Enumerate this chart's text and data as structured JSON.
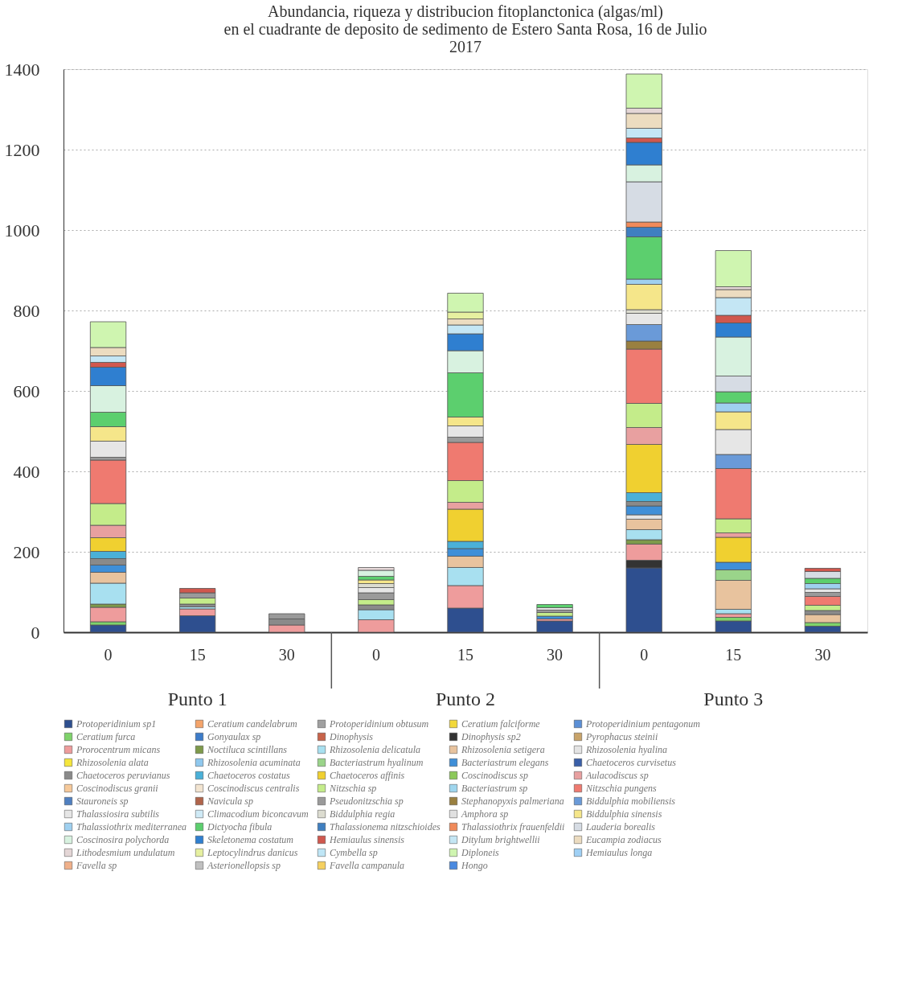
{
  "chart_data": {
    "type": "bar",
    "stacked": true,
    "title": [
      "Abundancia, riqueza y distribucion fitoplanctonica (algas/ml)",
      "en el cuadrante de deposito de sedimento de Estero Santa Rosa, 16 de Julio",
      "2017"
    ],
    "categories": [
      "0",
      "15",
      "30",
      "0",
      "15",
      "30",
      "0",
      "15",
      "30"
    ],
    "annotations": [
      "Punto 1",
      "Punto 2",
      "Punto 3"
    ],
    "ylim": [
      0,
      1400
    ],
    "yticks": [
      0,
      200,
      400,
      600,
      800,
      1000,
      1200,
      1400
    ],
    "grid": "y",
    "legend": "bottom",
    "series": [
      {
        "name": "Protoperidinium sp1",
        "color": "#2e4f8f",
        "values": [
          18,
          41,
          null,
          null,
          60,
          28,
          160,
          28,
          15
        ]
      },
      {
        "name": "Ceratium candelabrum",
        "color": "#f4a46a",
        "values": [
          null,
          null,
          null,
          null,
          null,
          null,
          null,
          null,
          null
        ]
      },
      {
        "name": "Protoperidinium obtusum",
        "color": "#a0a0a0",
        "values": [
          null,
          null,
          null,
          null,
          null,
          null,
          null,
          null,
          null
        ]
      },
      {
        "name": "Ceratium falciforme",
        "color": "#f2d83a",
        "values": [
          null,
          null,
          null,
          null,
          null,
          null,
          null,
          null,
          null
        ]
      },
      {
        "name": "Protoperidinium pentagonum",
        "color": "#5b8fd6",
        "values": [
          null,
          null,
          null,
          null,
          null,
          null,
          null,
          null,
          null
        ]
      },
      {
        "name": "Ceratium furca",
        "color": "#7fd36b",
        "values": [
          8,
          null,
          null,
          null,
          null,
          null,
          null,
          9,
          9
        ]
      },
      {
        "name": "Gonyaulax sp",
        "color": "#3d7cc9",
        "values": [
          null,
          null,
          null,
          null,
          null,
          null,
          null,
          null,
          null
        ]
      },
      {
        "name": "Dinophysis",
        "color": "#c8634a",
        "values": [
          null,
          null,
          null,
          null,
          null,
          null,
          null,
          null,
          null
        ]
      },
      {
        "name": "Dinophysis sp2",
        "color": "#333333",
        "values": [
          null,
          null,
          null,
          null,
          null,
          null,
          19,
          null,
          null
        ]
      },
      {
        "name": "Pyrophacus steinii",
        "color": "#c9a46a",
        "values": [
          null,
          null,
          null,
          null,
          null,
          null,
          null,
          null,
          null
        ]
      },
      {
        "name": "Prorocentrum micans",
        "color": "#ee9c9c",
        "values": [
          36,
          17,
          18,
          31,
          56,
          5,
          40,
          9,
          null
        ]
      },
      {
        "name": "Noctiluca scintillans",
        "color": "#7e9a4a",
        "values": [
          8,
          null,
          null,
          null,
          null,
          null,
          11,
          null,
          null
        ]
      },
      {
        "name": "Rhizosolenia delicatula",
        "color": "#a8e0f0",
        "values": [
          52,
          5,
          null,
          25,
          45,
          null,
          25,
          11,
          null
        ]
      },
      {
        "name": "Rhizosolenia setigera",
        "color": "#e8c39e",
        "values": [
          27,
          null,
          null,
          null,
          28,
          null,
          26,
          72,
          20
        ]
      },
      {
        "name": "Rhizosolenia hyalina",
        "color": "#e4e4e4",
        "values": [
          null,
          null,
          null,
          null,
          null,
          null,
          11,
          null,
          null
        ]
      },
      {
        "name": "Rhizosolenia alata",
        "color": "#f5e63c",
        "values": [
          null,
          null,
          null,
          null,
          null,
          null,
          null,
          null,
          null
        ]
      },
      {
        "name": "Rhizosolenia acuminata",
        "color": "#8fc8ee",
        "values": [
          null,
          null,
          null,
          null,
          null,
          null,
          null,
          null,
          null
        ]
      },
      {
        "name": "Bacteriastrum hyalinum",
        "color": "#9ad48a",
        "values": [
          null,
          null,
          null,
          null,
          null,
          null,
          null,
          26,
          null
        ]
      },
      {
        "name": "Bacteriastrum elegans",
        "color": "#3f8fd8",
        "values": [
          18,
          null,
          null,
          null,
          19,
          7,
          22,
          19,
          null
        ]
      },
      {
        "name": "Chaetoceros curvisetus",
        "color": "#3a5fa8",
        "values": [
          null,
          null,
          null,
          null,
          null,
          null,
          null,
          null,
          null
        ]
      },
      {
        "name": "Chaetoceros peruvianus",
        "color": "#8a8a8a",
        "values": [
          16,
          7,
          15,
          12,
          null,
          null,
          11,
          null,
          10
        ]
      },
      {
        "name": "Chaetoceros costatus",
        "color": "#4ab0d8",
        "values": [
          18,
          null,
          null,
          null,
          18,
          null,
          22,
          null,
          null
        ]
      },
      {
        "name": "Chaetoceros affinis",
        "color": "#f0d030",
        "values": [
          34,
          null,
          null,
          null,
          80,
          null,
          120,
          62,
          null
        ]
      },
      {
        "name": "Coscinodiscus sp",
        "color": "#8cc85a",
        "values": [
          null,
          null,
          null,
          null,
          null,
          null,
          null,
          null,
          null
        ]
      },
      {
        "name": "Aulacodiscus sp",
        "color": "#e8a0a0",
        "values": [
          31,
          null,
          null,
          null,
          17,
          null,
          42,
          11,
          null
        ]
      },
      {
        "name": "Coscinodiscus granii",
        "color": "#f6c99a",
        "values": [
          null,
          null,
          null,
          null,
          null,
          null,
          null,
          null,
          null
        ]
      },
      {
        "name": "Coscinodiscus centralis",
        "color": "#f2e4d0",
        "values": [
          null,
          null,
          null,
          null,
          null,
          null,
          null,
          null,
          null
        ]
      },
      {
        "name": "Nitzschia sp",
        "color": "#c4ec8a",
        "values": [
          54,
          15,
          null,
          13,
          54,
          9,
          60,
          35,
          13
        ]
      },
      {
        "name": "Bacteriastrum sp",
        "color": "#9fd6ee",
        "values": [
          null,
          null,
          null,
          null,
          null,
          null,
          null,
          null,
          null
        ]
      },
      {
        "name": "Nitzschia pungens",
        "color": "#ef7a70",
        "values": [
          108,
          null,
          null,
          null,
          95,
          null,
          135,
          125,
          22
        ]
      },
      {
        "name": "Stauroneis sp",
        "color": "#4f7fc0",
        "values": [
          null,
          null,
          null,
          null,
          null,
          null,
          null,
          null,
          null
        ]
      },
      {
        "name": "Navicula sp",
        "color": "#b0644a",
        "values": [
          null,
          null,
          null,
          null,
          null,
          null,
          null,
          null,
          null
        ]
      },
      {
        "name": "Pseudonitzschia sp",
        "color": "#9a9a9a",
        "values": [
          7,
          13,
          13,
          17,
          13,
          6,
          null,
          null,
          10
        ]
      },
      {
        "name": "Stephanopyxis palmeriana",
        "color": "#9a8040",
        "values": [
          null,
          null,
          null,
          null,
          null,
          null,
          20,
          null,
          null
        ]
      },
      {
        "name": "Biddulphia mobiliensis",
        "color": "#6a9ad8",
        "values": [
          null,
          null,
          null,
          null,
          null,
          null,
          41,
          35,
          null
        ]
      },
      {
        "name": "Thalassiosira subtilis",
        "color": "#e6e6e6",
        "values": [
          40,
          null,
          null,
          13,
          28,
          6,
          28,
          62,
          9
        ]
      },
      {
        "name": "Climacodium biconcavum",
        "color": "#cfeaf6",
        "values": [
          null,
          null,
          null,
          null,
          null,
          null,
          null,
          null,
          null
        ]
      },
      {
        "name": "Biddulphia regia",
        "color": "#dcdcd0",
        "values": [
          null,
          null,
          null,
          10,
          null,
          null,
          9,
          null,
          null
        ]
      },
      {
        "name": "Amphora sp",
        "color": "#e0e0e0",
        "values": [
          null,
          null,
          null,
          null,
          null,
          null,
          null,
          null,
          null
        ]
      },
      {
        "name": "Biddulphia sinensis",
        "color": "#f5e68a",
        "values": [
          36,
          null,
          null,
          9,
          22,
          null,
          63,
          44,
          null
        ]
      },
      {
        "name": "Thalassiothrix mediterranea",
        "color": "#9fd0f0",
        "values": [
          null,
          null,
          null,
          null,
          null,
          null,
          13,
          22,
          13
        ]
      },
      {
        "name": "Dictyocha fibula",
        "color": "#5ccf6e",
        "values": [
          36,
          null,
          null,
          9,
          110,
          8,
          105,
          28,
          13
        ]
      },
      {
        "name": "Thalassionema nitzschioides",
        "color": "#3f7fc0",
        "values": [
          null,
          null,
          null,
          null,
          null,
          null,
          24,
          null,
          null
        ]
      },
      {
        "name": "Thalassiothrix frauenfeldii",
        "color": "#f08a5a",
        "values": [
          null,
          null,
          null,
          null,
          null,
          null,
          13,
          null,
          null
        ]
      },
      {
        "name": "Lauderia borealis",
        "color": "#d6dce4",
        "values": [
          null,
          null,
          null,
          null,
          null,
          null,
          100,
          39,
          17
        ]
      },
      {
        "name": "Coscinosira polychorda",
        "color": "#d8f2e0",
        "values": [
          66,
          null,
          null,
          15,
          55,
          null,
          42,
          97,
          null
        ]
      },
      {
        "name": "Skeletonema costatum",
        "color": "#2f7fd0",
        "values": [
          46,
          null,
          null,
          null,
          42,
          null,
          56,
          35,
          null
        ]
      },
      {
        "name": "Hemiaulus sinensis",
        "color": "#d0584e",
        "values": [
          12,
          11,
          null,
          null,
          null,
          null,
          11,
          19,
          8
        ]
      },
      {
        "name": "Ditylum brightwellii",
        "color": "#c4e6f4",
        "values": [
          16,
          null,
          null,
          null,
          22,
          null,
          24,
          44,
          null
        ]
      },
      {
        "name": "Eucampia zodiacus",
        "color": "#ecdcc0",
        "values": [
          21,
          null,
          null,
          null,
          15,
          null,
          37,
          20,
          null
        ]
      },
      {
        "name": "Lithodesmium undulatum",
        "color": "#e4d6d6",
        "values": [
          null,
          null,
          null,
          7,
          null,
          null,
          13,
          7,
          null
        ]
      },
      {
        "name": "Leptocylindrus danicus",
        "color": "#e6f0a0",
        "values": [
          null,
          null,
          null,
          null,
          17,
          null,
          null,
          null,
          null
        ]
      },
      {
        "name": "Cymbella sp",
        "color": "#bfe6f6",
        "values": [
          null,
          null,
          null,
          null,
          null,
          null,
          null,
          null,
          null
        ]
      },
      {
        "name": "Diploneis",
        "color": "#cff5b0",
        "values": [
          64,
          null,
          null,
          null,
          47,
          null,
          85,
          90,
          null
        ]
      },
      {
        "name": "Hemiaulus longa",
        "color": "#9fd0f5",
        "values": [
          null,
          null,
          null,
          null,
          null,
          null,
          null,
          null,
          null
        ]
      },
      {
        "name": "Favella sp",
        "color": "#f0b08a",
        "values": [
          null,
          null,
          null,
          null,
          null,
          null,
          null,
          null,
          null
        ]
      },
      {
        "name": "Asterionellopsis sp",
        "color": "#c0c0c0",
        "values": [
          null,
          null,
          null,
          null,
          null,
          null,
          null,
          null,
          null
        ]
      },
      {
        "name": "Favella campanula",
        "color": "#f5d060",
        "values": [
          null,
          null,
          null,
          null,
          null,
          null,
          null,
          null,
          null
        ]
      },
      {
        "name": "Hongo",
        "color": "#4a8ae0",
        "values": [
          null,
          null,
          null,
          null,
          null,
          null,
          null,
          null,
          null
        ]
      }
    ]
  }
}
